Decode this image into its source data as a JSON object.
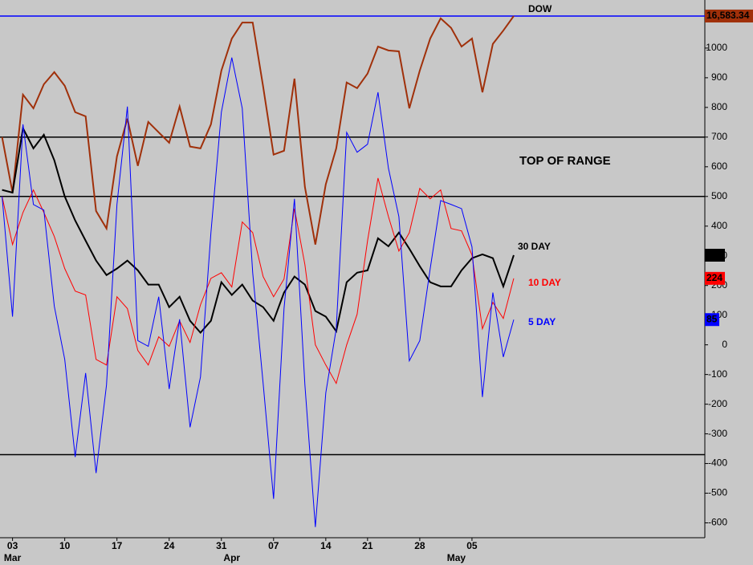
{
  "chart_data": {
    "type": "line",
    "annotation": "TOP OF RANGE",
    "x": [
      0,
      1,
      2,
      3,
      4,
      5,
      6,
      7,
      8,
      9,
      10,
      11,
      12,
      13,
      14,
      15,
      16,
      17,
      18,
      19,
      20,
      21,
      22,
      23,
      24,
      25,
      26,
      27,
      28,
      29,
      30,
      31,
      32,
      33,
      34,
      35,
      36,
      37,
      38,
      39,
      40,
      41,
      42,
      43,
      44,
      45,
      46,
      47,
      48,
      49
    ],
    "xlim": [
      -0.2,
      67.3
    ],
    "xticks": [
      {
        "value": 1,
        "label": "03"
      },
      {
        "value": 6,
        "label": "10"
      },
      {
        "value": 11,
        "label": "17"
      },
      {
        "value": 16,
        "label": "24"
      },
      {
        "value": 21,
        "label": "31"
      },
      {
        "value": 26,
        "label": "07"
      },
      {
        "value": 31,
        "label": "14"
      },
      {
        "value": 35,
        "label": "21"
      },
      {
        "value": 40,
        "label": "28"
      },
      {
        "value": 45,
        "label": "05"
      }
    ],
    "month_labels": [
      {
        "value": 1,
        "label": "Mar"
      },
      {
        "value": 22,
        "label": "Apr"
      },
      {
        "value": 43.5,
        "label": "May"
      }
    ],
    "ylim": [
      -650,
      1162
    ],
    "yticks": [
      -600,
      -500,
      -400,
      -300,
      -200,
      -100,
      0,
      100,
      200,
      300,
      400,
      500,
      600,
      700,
      800,
      900,
      1000
    ],
    "range_lines": [
      700,
      500,
      -370
    ],
    "series": [
      {
        "name": "DOW",
        "color": "#a0300a",
        "width": 2,
        "current_line_color": "#0000ff",
        "end_label": "16,583.34",
        "values": [
          700,
          513,
          843,
          797,
          878,
          919,
          873,
          784,
          770,
          451,
          392,
          635,
          762,
          603,
          751,
          716,
          681,
          803,
          668,
          662,
          743,
          924,
          1032,
          1086,
          1086,
          870,
          641,
          654,
          897,
          532,
          338,
          541,
          662,
          884,
          865,
          914,
          1005,
          992,
          989,
          797,
          924,
          1032,
          1100,
          1068,
          1005,
          1032,
          851,
          1014,
          1059,
          1108
        ]
      },
      {
        "name": "30 DAY",
        "color": "#000000",
        "width": 2,
        "end_label": "302",
        "values": [
          522,
          513,
          730,
          662,
          708,
          622,
          500,
          419,
          351,
          284,
          235,
          257,
          284,
          251,
          203,
          203,
          127,
          162,
          81,
          41,
          81,
          211,
          168,
          203,
          149,
          127,
          81,
          176,
          230,
          203,
          114,
          95,
          46,
          211,
          243,
          251,
          359,
          332,
          378,
          324,
          265,
          211,
          197,
          197,
          251,
          292,
          305,
          292,
          197,
          302
        ]
      },
      {
        "name": "10 DAY",
        "color": "#ff0000",
        "width": 1,
        "end_label": "224",
        "values": [
          500,
          338,
          446,
          522,
          446,
          365,
          257,
          181,
          168,
          -49,
          -68,
          162,
          122,
          -19,
          -68,
          27,
          -5,
          81,
          8,
          135,
          224,
          243,
          195,
          414,
          378,
          230,
          162,
          222,
          459,
          270,
          0,
          -68,
          -130,
          0,
          103,
          351,
          562,
          432,
          316,
          378,
          527,
          492,
          522,
          392,
          384,
          303,
          54,
          143,
          89,
          224
        ]
      },
      {
        "name": "5 DAY",
        "color": "#0000ff",
        "width": 1,
        "end_label": "85",
        "values": [
          500,
          95,
          743,
          473,
          454,
          130,
          -49,
          -378,
          -95,
          -432,
          -135,
          473,
          803,
          14,
          -5,
          162,
          -149,
          86,
          -278,
          -108,
          378,
          784,
          968,
          797,
          243,
          -130,
          -519,
          122,
          492,
          -135,
          -614,
          -162,
          54,
          716,
          649,
          676,
          851,
          595,
          432,
          -54,
          14,
          257,
          486,
          473,
          459,
          330,
          -176,
          176,
          -41,
          85
        ]
      }
    ]
  }
}
